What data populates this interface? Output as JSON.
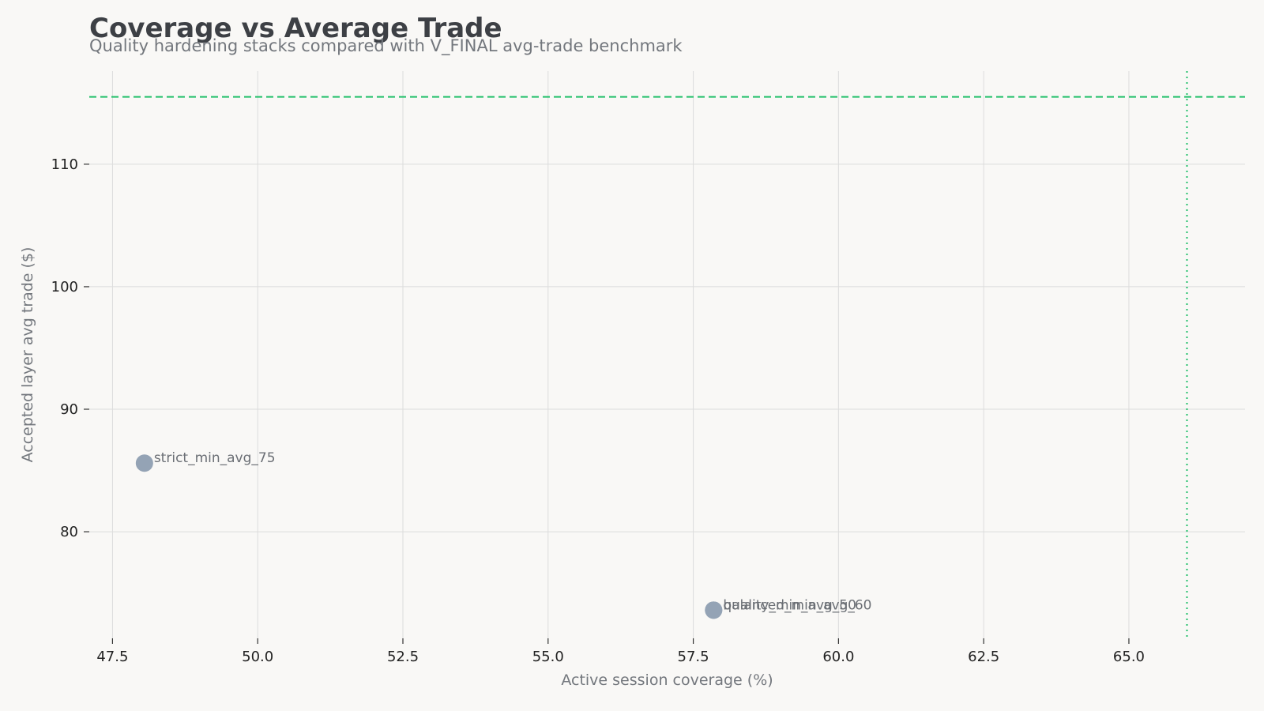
{
  "chart_data": {
    "type": "scatter",
    "title": "Coverage vs Average Trade",
    "subtitle": "Quality hardening stacks compared with V_FINAL avg-trade benchmark",
    "xlabel": "Active session coverage (%)",
    "ylabel": "Accepted layer avg trade ($)",
    "xlim": [
      47.1,
      67.0
    ],
    "ylim": [
      71.3,
      117.6
    ],
    "x_ticks": [
      "47.5",
      "50.0",
      "52.5",
      "55.0",
      "57.5",
      "60.0",
      "62.5",
      "65.0"
    ],
    "y_ticks": [
      "80",
      "90",
      "100",
      "110"
    ],
    "grid": true,
    "points": [
      {
        "label": "strict_min_avg_75",
        "x": 48.05,
        "y": 85.6
      },
      {
        "label": "balanced_min_avg_60",
        "x": 57.85,
        "y": 73.6
      },
      {
        "label": "quality_min_avg_50",
        "x": 57.85,
        "y": 73.6
      }
    ],
    "reference_lines": [
      {
        "orientation": "horizontal",
        "value": 115.5,
        "style": "dashed",
        "color": "#22c06a"
      },
      {
        "orientation": "vertical",
        "value": 66.0,
        "style": "dotted",
        "color": "#22c06a"
      }
    ],
    "point_color": "#94a3b5",
    "grid_color": "#dcdcdc"
  }
}
